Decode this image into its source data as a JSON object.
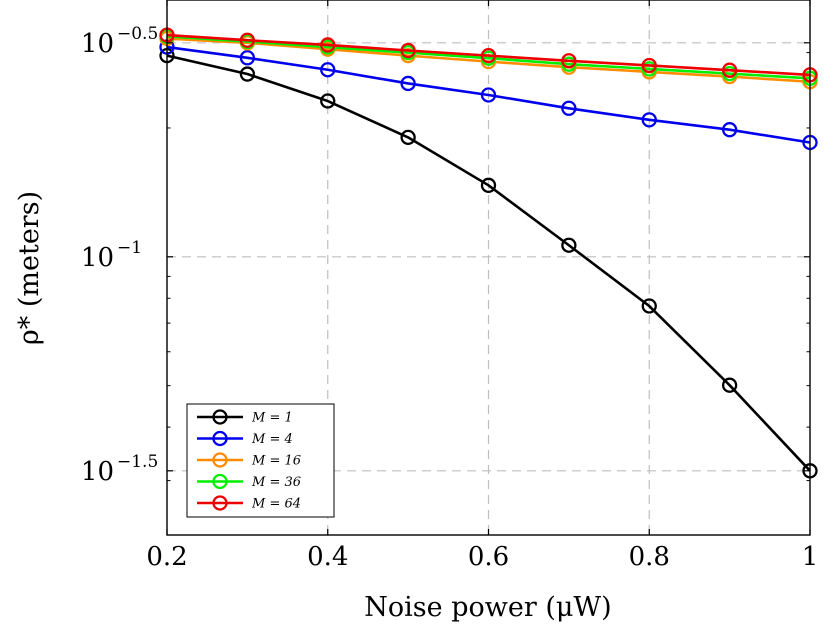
{
  "chart_data": {
    "type": "line",
    "xlabel": "Noise power (μW)",
    "ylabel": "ρ* (meters)",
    "x": [
      0.2,
      0.3,
      0.4,
      0.5,
      0.6,
      0.7,
      0.8,
      0.9,
      1.0
    ],
    "xlim": [
      0.2,
      1.0
    ],
    "ylim": [
      -1.65,
      -0.4
    ],
    "yscale": "log",
    "grid": true,
    "legend_position": "bottom-left",
    "x_ticks": [
      {
        "value": 0.2,
        "label": "0.2"
      },
      {
        "value": 0.4,
        "label": "0.4"
      },
      {
        "value": 0.6,
        "label": "0.6"
      },
      {
        "value": 0.8,
        "label": "0.8"
      },
      {
        "value": 1.0,
        "label": "1"
      }
    ],
    "y_ticks": [
      {
        "value": -0.5,
        "base": "10",
        "exponent": "−0.5"
      },
      {
        "value": -1.0,
        "base": "10",
        "exponent": "−1"
      },
      {
        "value": -1.5,
        "base": "10",
        "exponent": "−1.5"
      }
    ],
    "series": [
      {
        "name": "M = 1",
        "color": "#000000",
        "log10_values": [
          -0.53,
          -0.573,
          -0.636,
          -0.721,
          -0.833,
          -0.973,
          -1.115,
          -1.3,
          -1.5
        ]
      },
      {
        "name": "M = 4",
        "color": "#0000ee",
        "log10_values": [
          -0.51,
          -0.535,
          -0.563,
          -0.595,
          -0.622,
          -0.653,
          -0.68,
          -0.703,
          -0.733
        ]
      },
      {
        "name": "M = 16",
        "color": "#ff8c00",
        "log10_values": [
          -0.49,
          -0.5,
          -0.515,
          -0.53,
          -0.544,
          -0.557,
          -0.568,
          -0.579,
          -0.591
        ]
      },
      {
        "name": "M = 36",
        "color": "#00ee00",
        "log10_values": [
          -0.485,
          -0.497,
          -0.51,
          -0.523,
          -0.536,
          -0.55,
          -0.561,
          -0.572,
          -0.583
        ]
      },
      {
        "name": "M = 64",
        "color": "#ee0000",
        "log10_values": [
          -0.482,
          -0.494,
          -0.505,
          -0.518,
          -0.53,
          -0.542,
          -0.553,
          -0.564,
          -0.575
        ]
      }
    ]
  }
}
